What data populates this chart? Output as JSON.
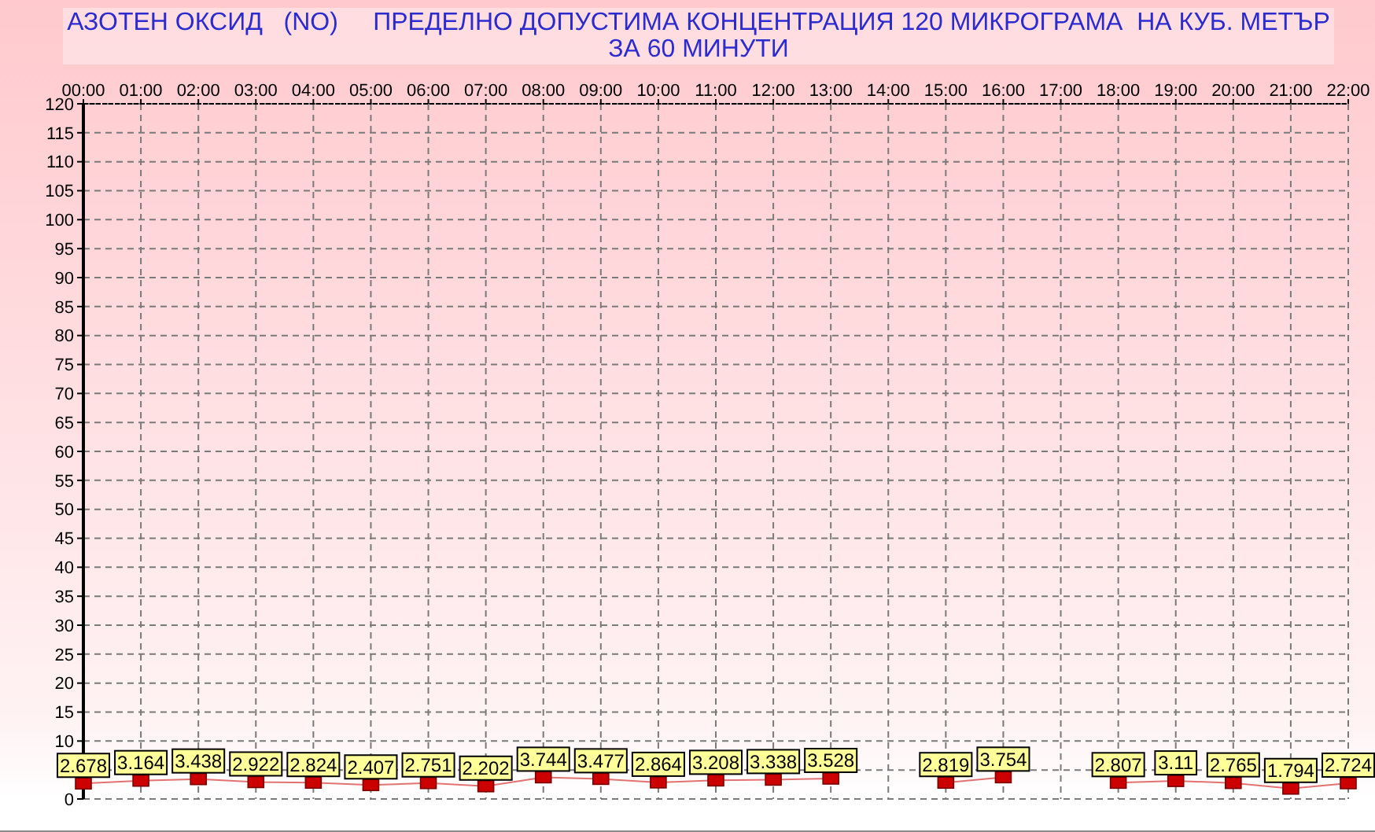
{
  "chart_data": {
    "type": "line",
    "title": "АЗОТЕН ОКСИД   (NO)     ПРЕДЕЛНО ДОПУСТИМА КОНЦЕНТРАЦИЯ 120 МИКРОГРАМА  НА КУБ. МЕТЪР",
    "subtitle": "ЗА 60 МИНУТИ",
    "categories": [
      "00:00",
      "01:00",
      "02:00",
      "03:00",
      "04:00",
      "05:00",
      "06:00",
      "07:00",
      "08:00",
      "09:00",
      "10:00",
      "11:00",
      "12:00",
      "13:00",
      "14:00",
      "15:00",
      "16:00",
      "17:00",
      "18:00",
      "19:00",
      "20:00",
      "21:00",
      "22:00"
    ],
    "series": [
      {
        "color": "#cc0000",
        "values": [
          2.678,
          3.164,
          3.438,
          2.922,
          2.824,
          2.407,
          2.751,
          2.202,
          3.744,
          3.477,
          2.864,
          3.208,
          3.338,
          3.528,
          null,
          2.819,
          3.754,
          null,
          2.807,
          3.11,
          2.765,
          1.794,
          2.724
        ]
      }
    ],
    "ylim": [
      0,
      120
    ],
    "yticks": [
      0,
      {
        "value": 5,
        "label": null
      },
      10,
      15,
      20,
      25,
      30,
      35,
      40,
      45,
      50,
      55,
      60,
      65,
      70,
      75,
      80,
      85,
      90,
      95,
      100,
      105,
      110,
      115,
      120
    ],
    "grid": true,
    "marker": "square",
    "data_labels": true
  }
}
